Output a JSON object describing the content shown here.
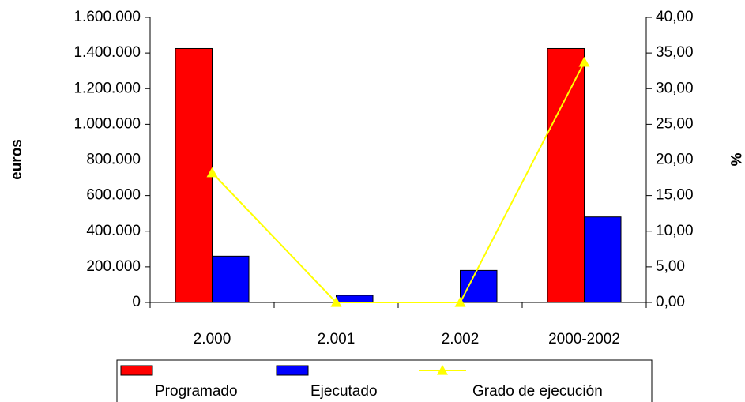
{
  "chart_data": {
    "type": "bar",
    "categories": [
      "2.000",
      "2.001",
      "2.002",
      "2000-2002"
    ],
    "series": [
      {
        "name": "Programado",
        "color": "#ff0000",
        "values": [
          1425000,
          0,
          0,
          1425000
        ]
      },
      {
        "name": "Ejecutado",
        "color": "#0000ff",
        "values": [
          260000,
          40000,
          180000,
          480000
        ]
      },
      {
        "name": "Grado de ejecución",
        "color": "#ffff00",
        "type": "line",
        "axis": "y2",
        "values": [
          18.2,
          0,
          0,
          33.7
        ]
      }
    ],
    "y_label": "euros",
    "y2_label": "%",
    "ylim": [
      0,
      1600000
    ],
    "yticks": [
      0,
      {
        "value": 200000,
        "label": "200.000"
      },
      {
        "value": 400000,
        "label": "400.000"
      },
      {
        "value": 600000,
        "label": "600.000"
      },
      {
        "value": 800000,
        "label": "800.000"
      },
      {
        "value": 1000000,
        "label": "1.000.000"
      },
      {
        "value": 1200000,
        "label": "1.200.000"
      },
      {
        "value": 1400000,
        "label": "1.400.000"
      },
      {
        "value": 1600000,
        "label": "1.600.000"
      }
    ],
    "y2lim": [
      0,
      40
    ],
    "y2ticks": [
      {
        "value": 0,
        "label": "0,00"
      },
      {
        "value": 5,
        "label": "5,00"
      },
      {
        "value": 10,
        "label": "10,00"
      },
      {
        "value": 15,
        "label": "15,00"
      },
      {
        "value": 20,
        "label": "20,00"
      },
      {
        "value": 25,
        "label": "25,00"
      },
      {
        "value": 30,
        "label": "30,00"
      },
      {
        "value": 35,
        "label": "35,00"
      },
      {
        "value": 40,
        "label": "40,00"
      }
    ],
    "legend": "bottom"
  }
}
